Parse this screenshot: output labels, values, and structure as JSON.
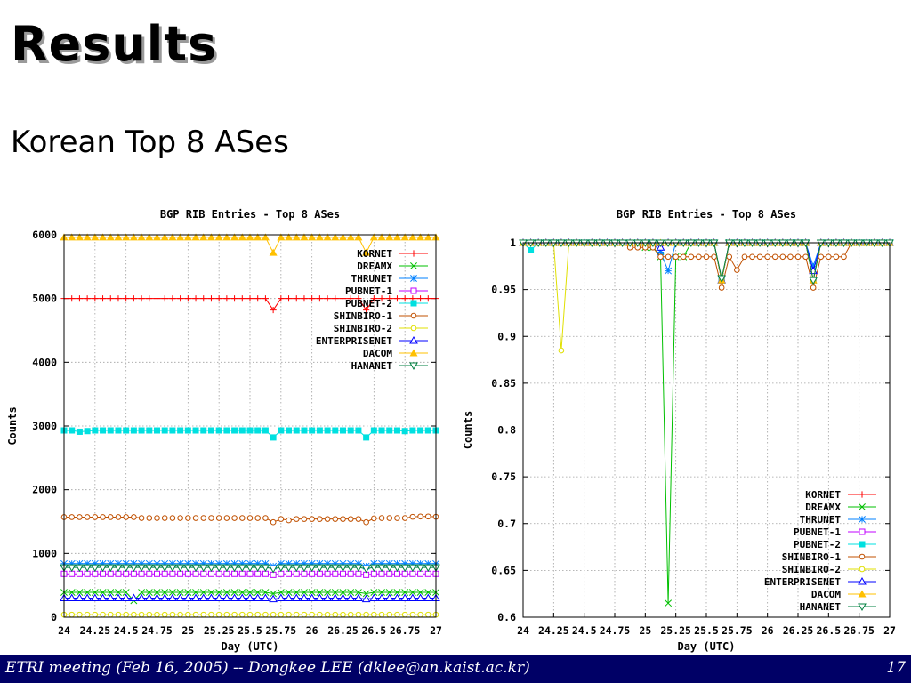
{
  "slide": {
    "title": "Results",
    "subtitle": "Korean Top 8 ASes",
    "footer": "ETRI meeting (Feb 16, 2005) -- Dongkee LEE (dklee@an.kaist.ac.kr)",
    "page_number": "17"
  },
  "chart_data": [
    {
      "type": "line",
      "title": "BGP RIB Entries - Top 8 ASes",
      "xlabel": "Day (UTC)",
      "ylabel": "Counts",
      "xlim": [
        24,
        27
      ],
      "ylim": [
        0,
        6000
      ],
      "x_ticks": [
        24,
        24.25,
        24.5,
        24.75,
        25,
        25.25,
        25.5,
        25.75,
        26,
        26.25,
        26.5,
        26.75,
        27
      ],
      "x_tick_labels": [
        "24",
        "24.25",
        "24.5",
        "24.75",
        "25",
        "25.25",
        "25.5",
        "25.75",
        "26",
        "26.25",
        "26.5",
        "26.75",
        "27"
      ],
      "y_ticks": [
        0,
        1000,
        2000,
        3000,
        4000,
        5000,
        6000
      ],
      "y_tick_labels": [
        "0",
        "1000",
        "2000",
        "3000",
        "4000",
        "5000",
        "6000"
      ],
      "grid": true,
      "legend_position": "top-right",
      "x_start": 24,
      "x_step": 0.0625,
      "series": [
        {
          "name": "KORNET",
          "color": "#ff0000",
          "marker": "plus",
          "base": 5000,
          "dips": [
            [
              27,
              4820
            ],
            [
              39,
              4820
            ]
          ]
        },
        {
          "name": "DREAMX",
          "color": "#00c000",
          "marker": "x",
          "base": 390,
          "dips": [
            [
              9,
              260
            ],
            [
              27,
              370
            ],
            [
              39,
              370
            ]
          ]
        },
        {
          "name": "THRUNET",
          "color": "#0080ff",
          "marker": "star",
          "base": 840,
          "dips": [
            [
              27,
              800
            ],
            [
              39,
              800
            ]
          ]
        },
        {
          "name": "PUBNET-1",
          "color": "#c000ff",
          "marker": "square-open",
          "base": 680,
          "dips": [
            [
              27,
              665
            ],
            [
              39,
              665
            ]
          ]
        },
        {
          "name": "PUBNET-2",
          "color": "#00e0e0",
          "marker": "square-filled",
          "base": 2930,
          "dips": [
            [
              2,
              2910
            ],
            [
              3,
              2920
            ],
            [
              27,
              2820
            ],
            [
              39,
              2820
            ],
            [
              44,
              2920
            ]
          ]
        },
        {
          "name": "SHINBIRO-1",
          "color": "#c05000",
          "marker": "circle-open",
          "base": 1570,
          "dips": [
            [
              10,
              1555
            ],
            [
              11,
              1555
            ],
            [
              12,
              1555
            ],
            [
              13,
              1555
            ],
            [
              14,
              1555
            ],
            [
              15,
              1555
            ],
            [
              16,
              1555
            ],
            [
              17,
              1555
            ],
            [
              18,
              1555
            ],
            [
              19,
              1555
            ],
            [
              20,
              1555
            ],
            [
              21,
              1555
            ],
            [
              22,
              1555
            ],
            [
              23,
              1555
            ],
            [
              24,
              1555
            ],
            [
              25,
              1555
            ],
            [
              26,
              1555
            ],
            [
              27,
              1490
            ],
            [
              28,
              1540
            ],
            [
              29,
              1520
            ],
            [
              30,
              1540
            ],
            [
              31,
              1540
            ],
            [
              32,
              1540
            ],
            [
              33,
              1540
            ],
            [
              34,
              1540
            ],
            [
              35,
              1540
            ],
            [
              36,
              1540
            ],
            [
              37,
              1540
            ],
            [
              38,
              1540
            ],
            [
              39,
              1490
            ],
            [
              40,
              1550
            ],
            [
              41,
              1555
            ],
            [
              42,
              1555
            ],
            [
              43,
              1555
            ],
            [
              44,
              1555
            ],
            [
              45,
              1575
            ],
            [
              46,
              1580
            ],
            [
              47,
              1580
            ],
            [
              48,
              1575
            ]
          ]
        },
        {
          "name": "SHINBIRO-2",
          "color": "#e0e000",
          "marker": "circle-open",
          "base": 40,
          "dips": []
        },
        {
          "name": "ENTERPRISENET",
          "color": "#0000ff",
          "marker": "triangle-open",
          "base": 300,
          "dips": [
            [
              27,
              285
            ],
            [
              39,
              285
            ]
          ]
        },
        {
          "name": "DACOM",
          "color": "#ffc000",
          "marker": "triangle-filled",
          "base": 5960,
          "dips": [
            [
              27,
              5720
            ],
            [
              39,
              5720
            ]
          ]
        },
        {
          "name": "HANANET",
          "color": "#008040",
          "marker": "triangle-down",
          "base": 780,
          "dips": [
            [
              27,
              760
            ],
            [
              39,
              760
            ]
          ]
        }
      ]
    },
    {
      "type": "line",
      "title": "BGP RIB Entries - Top 8 ASes",
      "xlabel": "Day (UTC)",
      "ylabel": "Counts",
      "xlim": [
        24,
        27
      ],
      "ylim": [
        0.6,
        1
      ],
      "x_ticks": [
        24,
        24.25,
        24.5,
        24.75,
        25,
        25.25,
        25.5,
        25.75,
        26,
        26.25,
        26.5,
        26.75,
        27
      ],
      "x_tick_labels": [
        "24",
        "24.25",
        "24.5",
        "24.75",
        "25",
        "25.25",
        "25.5",
        "25.75",
        "26",
        "26.25",
        "26.5",
        "26.75",
        "27"
      ],
      "y_ticks": [
        0.6,
        0.65,
        0.7,
        0.75,
        0.8,
        0.85,
        0.9,
        0.95,
        1
      ],
      "y_tick_labels": [
        "0.6",
        "0.65",
        "0.7",
        "0.75",
        "0.8",
        "0.85",
        "0.9",
        "0.95",
        "1"
      ],
      "grid": true,
      "legend_position": "bottom-right",
      "x_start": 24,
      "x_step": 0.0625,
      "series": [
        {
          "name": "KORNET",
          "color": "#ff0000",
          "marker": "plus",
          "base": 1,
          "dips": [
            [
              26,
              0.96
            ],
            [
              38,
              0.96
            ]
          ]
        },
        {
          "name": "DREAMX",
          "color": "#00c000",
          "marker": "x",
          "base": 1,
          "dips": [
            [
              16,
              0.995
            ],
            [
              17,
              0.995
            ],
            [
              18,
              0.985
            ],
            [
              19,
              0.615
            ],
            [
              20,
              0.985
            ],
            [
              21,
              0.985
            ],
            [
              26,
              0.96
            ],
            [
              38,
              0.96
            ]
          ]
        },
        {
          "name": "THRUNET",
          "color": "#0080ff",
          "marker": "star",
          "base": 1,
          "dips": [
            [
              18,
              0.99
            ],
            [
              19,
              0.97
            ],
            [
              26,
              0.96
            ],
            [
              38,
              0.975
            ]
          ]
        },
        {
          "name": "PUBNET-1",
          "color": "#c000ff",
          "marker": "square-open",
          "base": 1,
          "dips": [
            [
              26,
              0.96
            ],
            [
              38,
              0.96
            ]
          ]
        },
        {
          "name": "PUBNET-2",
          "color": "#00e0e0",
          "marker": "square-filled",
          "base": 1,
          "dips": [
            [
              1,
              0.992
            ],
            [
              26,
              0.96
            ],
            [
              38,
              0.96
            ]
          ]
        },
        {
          "name": "SHINBIRO-1",
          "color": "#c05000",
          "marker": "circle-open",
          "base": 1,
          "dips": [
            [
              14,
              0.995
            ],
            [
              15,
              0.995
            ],
            [
              16,
              0.995
            ],
            [
              17,
              0.995
            ],
            [
              18,
              0.985
            ],
            [
              19,
              0.985
            ],
            [
              20,
              0.985
            ],
            [
              21,
              0.985
            ],
            [
              22,
              0.985
            ],
            [
              23,
              0.985
            ],
            [
              24,
              0.985
            ],
            [
              25,
              0.985
            ],
            [
              26,
              0.952
            ],
            [
              27,
              0.985
            ],
            [
              28,
              0.971
            ],
            [
              29,
              0.985
            ],
            [
              30,
              0.985
            ],
            [
              31,
              0.985
            ],
            [
              32,
              0.985
            ],
            [
              33,
              0.985
            ],
            [
              34,
              0.985
            ],
            [
              35,
              0.985
            ],
            [
              36,
              0.985
            ],
            [
              37,
              0.985
            ],
            [
              38,
              0.952
            ],
            [
              39,
              0.985
            ],
            [
              40,
              0.985
            ],
            [
              41,
              0.985
            ],
            [
              42,
              0.985
            ]
          ]
        },
        {
          "name": "SHINBIRO-2",
          "color": "#e0e000",
          "marker": "circle-open",
          "base": 1,
          "dips": [
            [
              5,
              0.885
            ],
            [
              26,
              0.96
            ],
            [
              38,
              0.96
            ]
          ]
        },
        {
          "name": "ENTERPRISENET",
          "color": "#0000ff",
          "marker": "triangle-open",
          "base": 1,
          "dips": [
            [
              18,
              0.995
            ],
            [
              26,
              0.96
            ],
            [
              38,
              0.97
            ]
          ]
        },
        {
          "name": "DACOM",
          "color": "#ffc000",
          "marker": "triangle-filled",
          "base": 1,
          "dips": [
            [
              26,
              0.96
            ],
            [
              38,
              0.96
            ]
          ]
        },
        {
          "name": "HANANET",
          "color": "#008040",
          "marker": "triangle-down",
          "base": 1,
          "dips": [
            [
              26,
              0.962
            ],
            [
              38,
              0.96
            ]
          ]
        }
      ]
    }
  ]
}
